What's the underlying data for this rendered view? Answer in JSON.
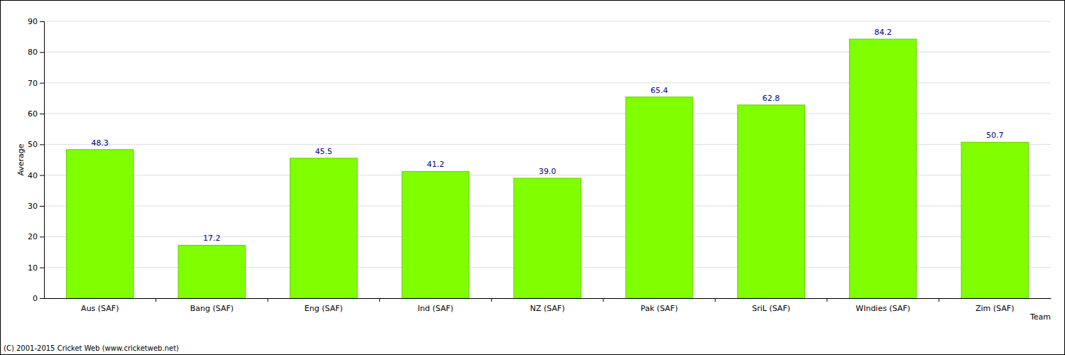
{
  "chart_data": {
    "type": "bar",
    "x_label": "Team",
    "y_label": "Average",
    "categories": [
      "Aus (SAF)",
      "Bang (SAF)",
      "Eng (SAF)",
      "Ind (SAF)",
      "NZ (SAF)",
      "Pak (SAF)",
      "SriL (SAF)",
      "WIndies (SAF)",
      "Zim (SAF)"
    ],
    "values": [
      48.3,
      17.2,
      45.5,
      41.2,
      39.0,
      65.4,
      62.8,
      84.2,
      50.7
    ],
    "value_labels": [
      "48.3",
      "17.2",
      "45.5",
      "41.2",
      "39.0",
      "65.4",
      "62.8",
      "84.2",
      "50.7"
    ],
    "color": "#7fff00",
    "ylim": [
      0,
      90
    ],
    "yticks": [
      0,
      10,
      20,
      30,
      40,
      50,
      60,
      70,
      80,
      90
    ],
    "grid": true,
    "data_labels": true,
    "annotations": [
      "(C) 2001-2015 Cricket Web (www.cricketweb.net)"
    ]
  }
}
